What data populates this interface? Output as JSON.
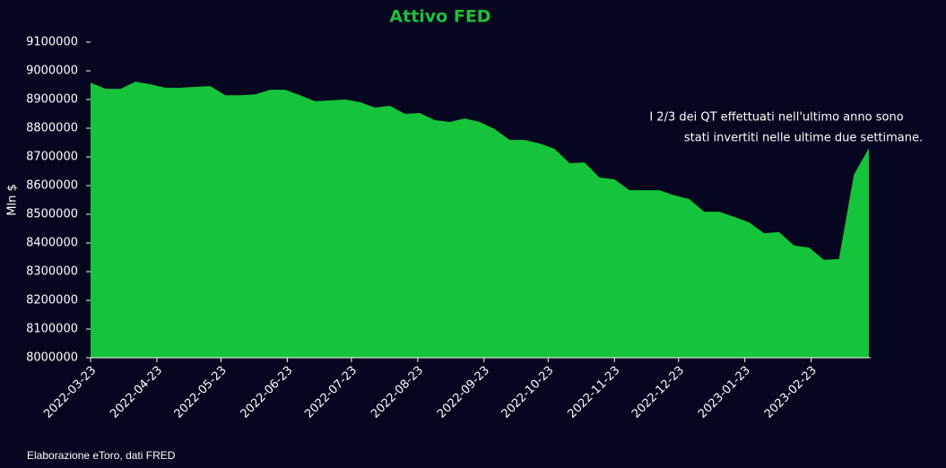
{
  "chart_data": {
    "type": "area",
    "title": "Attivo FED",
    "y_label": "Mln $",
    "annotation": [
      "I 2/3 dei QT effettuati nell'ultimo anno sono",
      "stati invertiti nelle ultime due settimane."
    ],
    "source": "Elaborazione eToro, dati FRED",
    "color": "#15c43a",
    "x": [
      "2022-03-23",
      "2022-03-30",
      "2022-04-06",
      "2022-04-13",
      "2022-04-20",
      "2022-04-27",
      "2022-05-04",
      "2022-05-11",
      "2022-05-18",
      "2022-05-25",
      "2022-06-01",
      "2022-06-08",
      "2022-06-15",
      "2022-06-22",
      "2022-06-29",
      "2022-07-06",
      "2022-07-13",
      "2022-07-20",
      "2022-07-27",
      "2022-08-03",
      "2022-08-10",
      "2022-08-17",
      "2022-08-24",
      "2022-08-31",
      "2022-09-07",
      "2022-09-14",
      "2022-09-21",
      "2022-09-28",
      "2022-10-05",
      "2022-10-12",
      "2022-10-19",
      "2022-10-26",
      "2022-11-02",
      "2022-11-09",
      "2022-11-16",
      "2022-11-23",
      "2022-11-30",
      "2022-12-07",
      "2022-12-14",
      "2022-12-21",
      "2022-12-28",
      "2023-01-04",
      "2023-01-11",
      "2023-01-18",
      "2023-01-25",
      "2023-02-01",
      "2023-02-08",
      "2023-02-15",
      "2023-02-22",
      "2023-03-01",
      "2023-03-08",
      "2023-03-15",
      "2023-03-22"
    ],
    "values": [
      8959000,
      8937000,
      8937000,
      8962000,
      8953000,
      8941000,
      8941000,
      8944000,
      8947000,
      8915000,
      8915000,
      8918000,
      8934000,
      8934000,
      8915000,
      8894000,
      8897000,
      8900000,
      8891000,
      8872000,
      8878000,
      8850000,
      8853000,
      8828000,
      8822000,
      8834000,
      8822000,
      8797000,
      8759000,
      8759000,
      8747000,
      8728000,
      8678000,
      8681000,
      8628000,
      8622000,
      8584000,
      8584000,
      8584000,
      8566000,
      8553000,
      8509000,
      8509000,
      8491000,
      8472000,
      8434000,
      8438000,
      8391000,
      8384000,
      8341000,
      8344000,
      8638000,
      8731000
    ],
    "xlim": [
      "2022-03-23",
      "2023-03-22"
    ],
    "xticks": [
      "2022-03-23",
      "2022-04-23",
      "2022-05-23",
      "2022-06-23",
      "2022-07-23",
      "2022-08-23",
      "2022-09-23",
      "2022-10-23",
      "2022-11-23",
      "2022-12-23",
      "2023-01-23",
      "2023-02-23"
    ],
    "ylim": [
      8000000,
      9100000
    ],
    "yticks": [
      8000000,
      8100000,
      8200000,
      8300000,
      8400000,
      8500000,
      8600000,
      8700000,
      8800000,
      8900000,
      9000000,
      9100000
    ],
    "grid": false
  }
}
